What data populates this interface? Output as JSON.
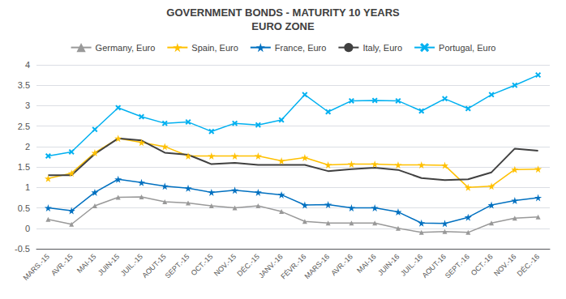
{
  "chart_data": {
    "type": "line",
    "title": "GOVERNMENT BONDS - MATURITY 10 YEARS",
    "subtitle": "EURO ZONE",
    "categories": [
      "MARS.-15",
      "AVR.-15",
      "MAI-15",
      "JUIN-15",
      "JUIL.-15",
      "AOUT-15",
      "SEPT.-15",
      "OCT.-15",
      "NOV.-15",
      "DÉC.-15",
      "JANV.-16",
      "FÉVR.-16",
      "MARS-16",
      "AVR.-16",
      "MAI-16",
      "JUIN-16",
      "JUIL.-16",
      "AOUT-16",
      "SEPT.-16",
      "OCT.-16",
      "NOV.-16",
      "DÉC.-16"
    ],
    "series": [
      {
        "name": "Germany, Euro",
        "color": "#999999",
        "marker": "triangle",
        "values": [
          0.22,
          0.1,
          0.55,
          0.76,
          0.77,
          0.65,
          0.62,
          0.55,
          0.5,
          0.55,
          0.41,
          0.17,
          0.13,
          0.13,
          0.13,
          0.0,
          -0.1,
          -0.08,
          -0.1,
          0.13,
          0.25,
          0.28
        ]
      },
      {
        "name": "Spain, Euro",
        "color": "#FFC000",
        "marker": "star",
        "values": [
          1.22,
          1.35,
          1.85,
          2.2,
          2.1,
          2.0,
          1.77,
          1.77,
          1.77,
          1.77,
          1.65,
          1.73,
          1.55,
          1.57,
          1.57,
          1.55,
          1.55,
          1.54,
          1.0,
          1.03,
          1.44,
          1.45
        ]
      },
      {
        "name": "France, Euro",
        "color": "#0070C0",
        "marker": "star",
        "values": [
          0.5,
          0.43,
          0.88,
          1.2,
          1.12,
          1.03,
          0.98,
          0.88,
          0.93,
          0.88,
          0.82,
          0.57,
          0.58,
          0.5,
          0.5,
          0.4,
          0.13,
          0.12,
          0.27,
          0.57,
          0.68,
          0.75
        ]
      },
      {
        "name": "Italy, Euro",
        "color": "#404040",
        "marker": "none",
        "values": [
          1.3,
          1.3,
          1.82,
          2.2,
          2.15,
          1.85,
          1.8,
          1.57,
          1.6,
          1.55,
          1.55,
          1.55,
          1.4,
          1.45,
          1.48,
          1.43,
          1.23,
          1.18,
          1.2,
          1.37,
          1.95,
          1.9
        ]
      },
      {
        "name": "Portugal, Euro",
        "color": "#00B0F0",
        "marker": "x",
        "values": [
          1.77,
          1.87,
          2.42,
          2.95,
          2.73,
          2.57,
          2.6,
          2.37,
          2.57,
          2.53,
          2.65,
          3.27,
          2.85,
          3.12,
          3.13,
          3.12,
          2.87,
          3.17,
          2.93,
          3.27,
          3.5,
          3.75
        ]
      }
    ],
    "ylim": [
      -0.5,
      4.0
    ],
    "yticks": [
      -0.5,
      0.0,
      0.5,
      1.0,
      1.5,
      2.0,
      2.5,
      3.0,
      3.5,
      4.0
    ],
    "grid": true,
    "legend": "top"
  }
}
